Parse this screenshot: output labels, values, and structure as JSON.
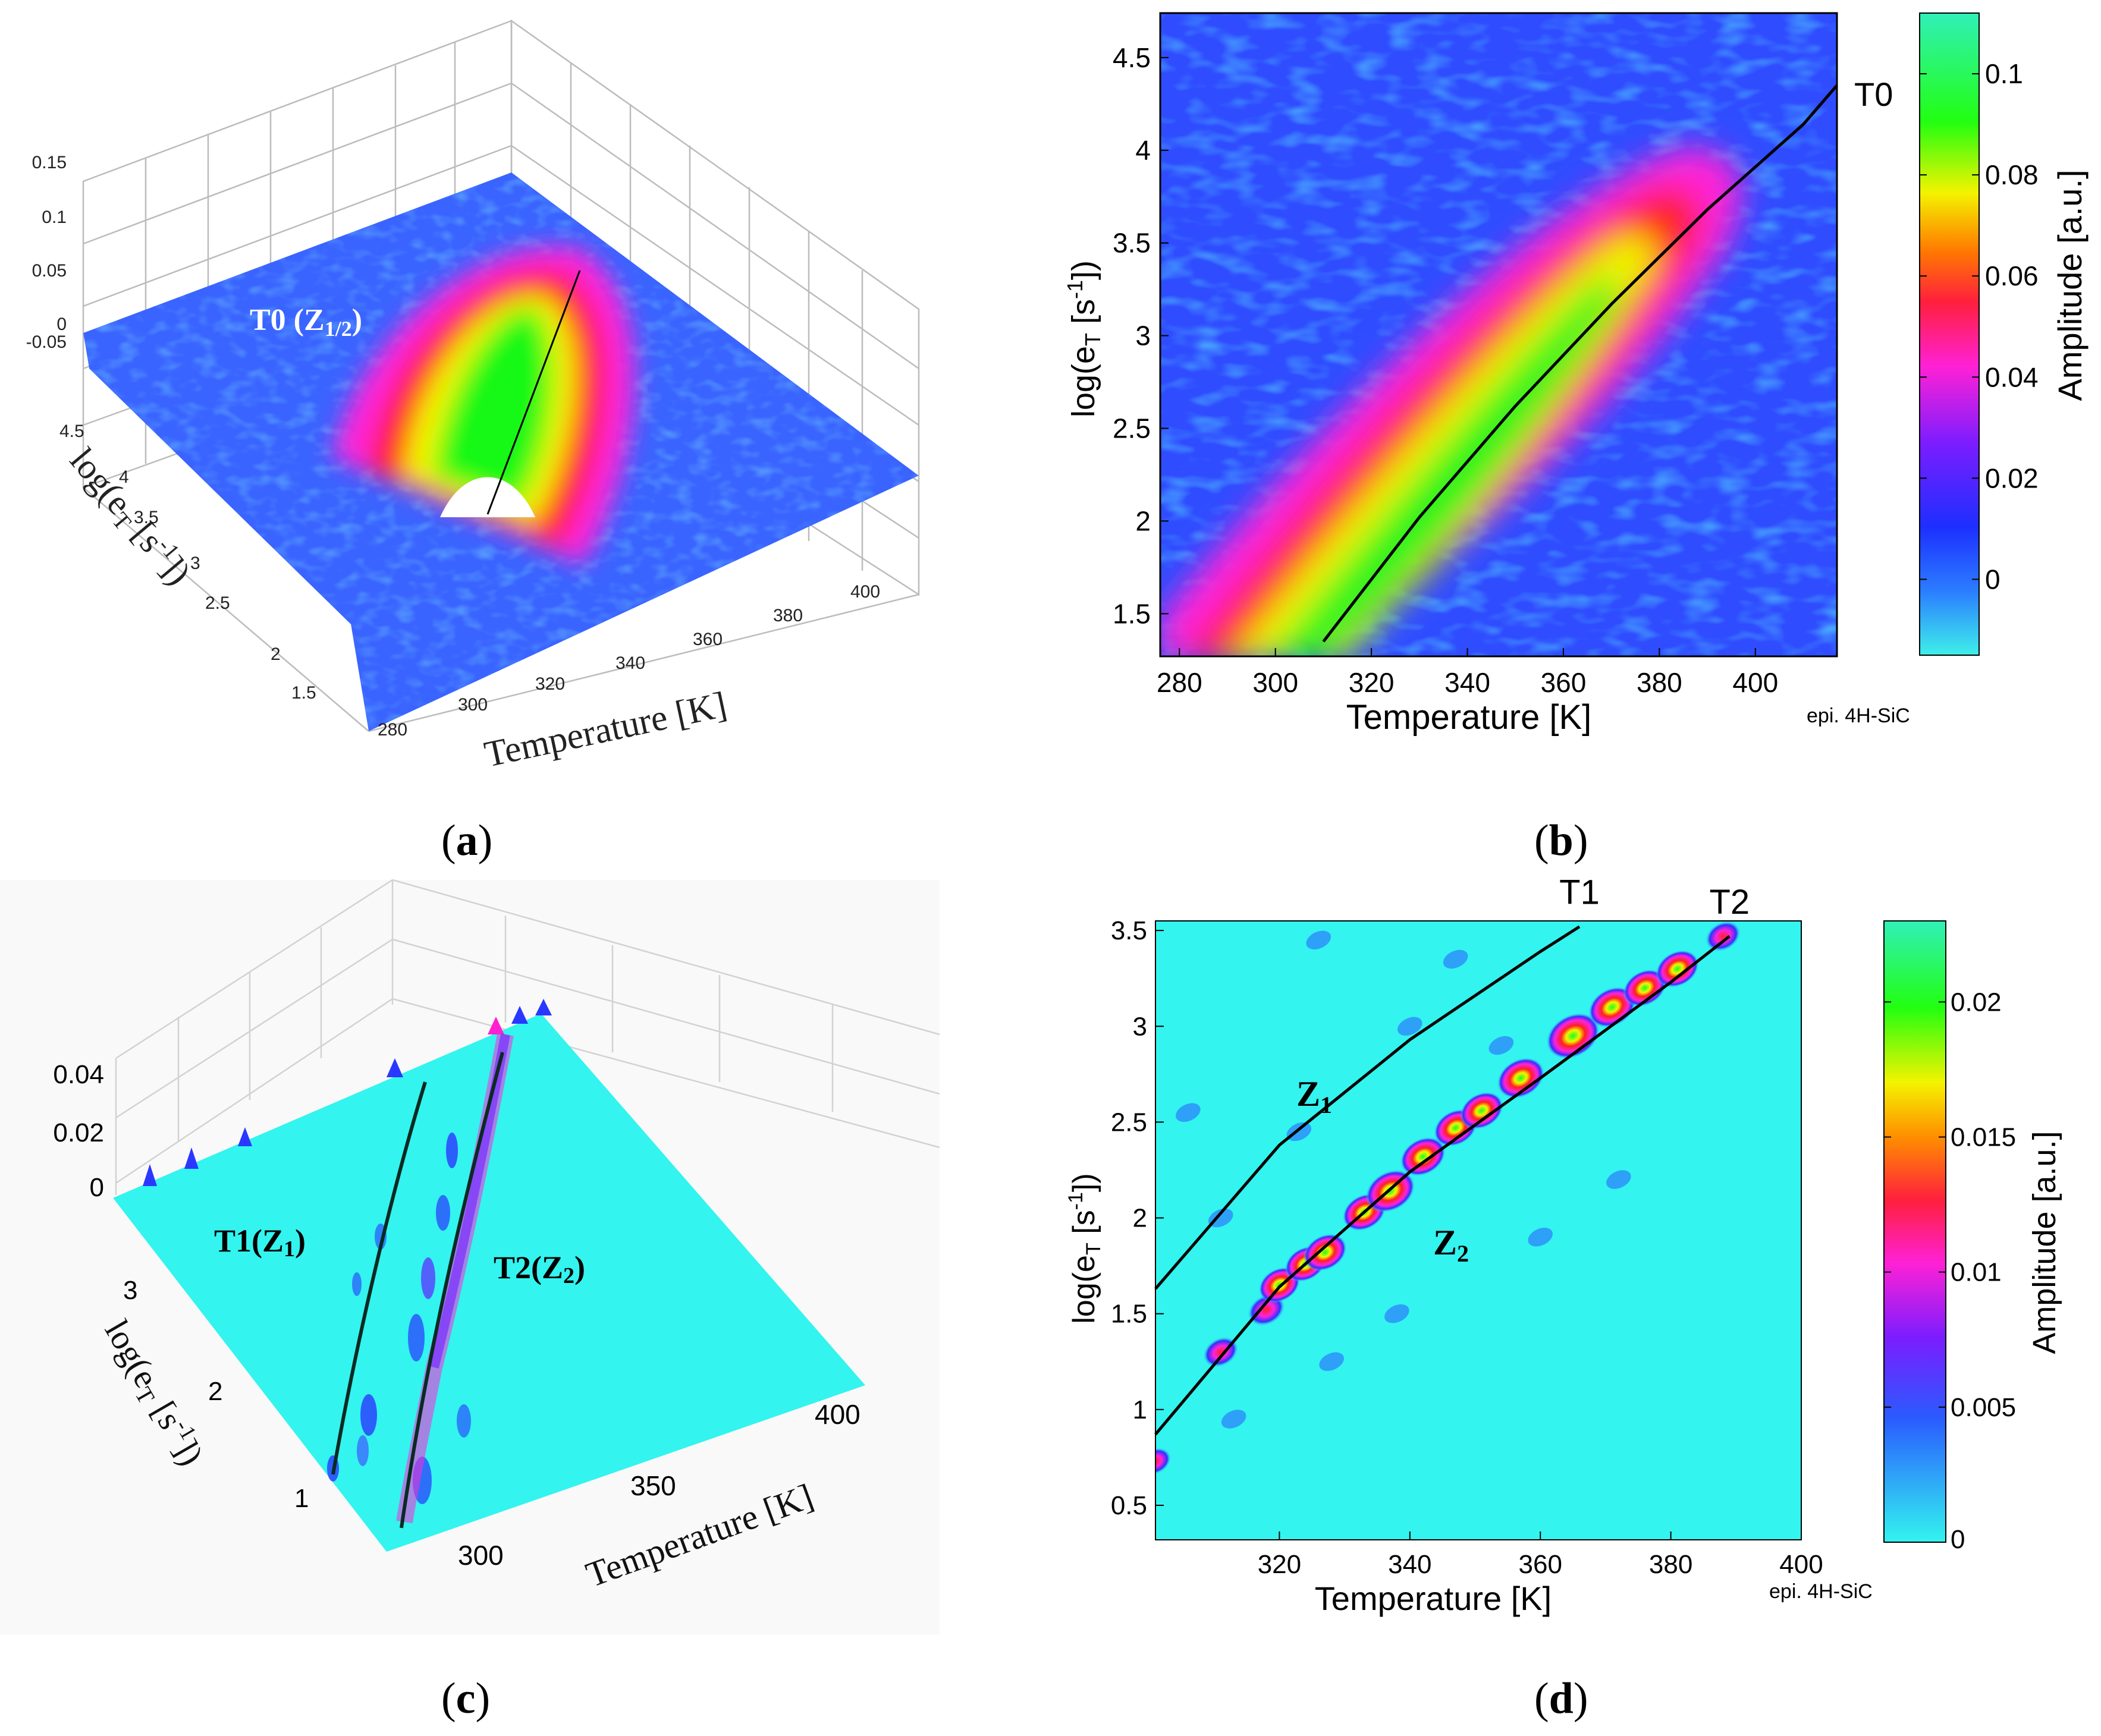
{
  "panel_labels": {
    "a": "a",
    "b": "b",
    "c": "c",
    "d": "d"
  },
  "colors": {
    "jet_low": "#38e8e0",
    "blue": "#2f58ff",
    "magenta": "#ff2dd6",
    "red": "#ff2a14",
    "yellow": "#f5f300",
    "green": "#10e81a",
    "cyan_plane": "#33f4ef",
    "black": "#000000"
  },
  "chart_data": [
    {
      "panel": "a",
      "type": "surface3d",
      "title": "",
      "xlabel": "Temperature [K]",
      "ylabel": "log(e",
      "ylabel_sub": "T",
      "ylabel_unit": " [s",
      "ylabel_sup": "-1",
      "ylabel_end": "])",
      "x_ticks": [
        "280",
        "300",
        "320",
        "340",
        "360",
        "380",
        "400"
      ],
      "y_ticks": [
        "1.5",
        "2",
        "2.5",
        "3",
        "3.5",
        "4",
        "4.5"
      ],
      "z_ticks": [
        "-0.05",
        "0",
        "0.05",
        "0.1",
        "0.15"
      ],
      "xlim": [
        280,
        410
      ],
      "ylim": [
        1.3,
        4.7
      ],
      "zlim": [
        -0.05,
        0.15
      ],
      "annotation": {
        "main": "T0 (Z",
        "sub": "1/2",
        "end": ")"
      },
      "ridge_trace": {
        "x": [
          310,
          420
        ],
        "y": [
          1.4,
          4.4
        ]
      },
      "peak_amplitude": 0.11
    },
    {
      "panel": "b",
      "type": "heatmap",
      "xlabel": "Temperature  [K]",
      "ylabel": "log(e",
      "ylabel_sub": "T",
      "ylabel_unit": " [s",
      "ylabel_sup": "-1",
      "ylabel_end": "])",
      "x_ticks": [
        "280",
        "300",
        "320",
        "340",
        "360",
        "380",
        "400"
      ],
      "y_ticks": [
        "1.5",
        "2",
        "2.5",
        "3",
        "3.5",
        "4",
        "4.5"
      ],
      "xlim": [
        276,
        417
      ],
      "ylim": [
        1.27,
        4.74
      ],
      "colorbar": {
        "label": "Amplitude [a.u.]",
        "ticks": [
          "0",
          "0.02",
          "0.04",
          "0.06",
          "0.08",
          "0.1"
        ],
        "range": [
          -0.015,
          0.112
        ]
      },
      "note": "epi. 4H-SiC",
      "trace_label": "T0",
      "trace": {
        "name": "T0",
        "x": [
          310,
          330,
          350,
          370,
          390,
          410,
          417
        ],
        "y": [
          1.35,
          2.02,
          2.62,
          3.17,
          3.68,
          4.14,
          4.35
        ]
      },
      "peak_amplitude": 0.11
    },
    {
      "panel": "c",
      "type": "surface3d",
      "xlabel": "Temperature [K]",
      "ylabel": "log(e",
      "ylabel_sub": "T",
      "ylabel_unit": " [s",
      "ylabel_sup": "-1",
      "ylabel_end": "])",
      "x_ticks": [
        "300",
        "350",
        "400"
      ],
      "y_ticks": [
        "1",
        "2",
        "3"
      ],
      "z_ticks": [
        "0",
        "0.02",
        "0.04"
      ],
      "zlim": [
        0,
        0.04
      ],
      "annotations": [
        {
          "main": "T1(Z",
          "sub": "1",
          "end": ")"
        },
        {
          "main": "T2(Z",
          "sub": "2",
          "end": ")"
        }
      ]
    },
    {
      "panel": "d",
      "type": "heatmap",
      "xlabel": "Temperature  [K]",
      "ylabel": "log(e",
      "ylabel_sub": "T",
      "ylabel_unit": " [s",
      "ylabel_sup": "-1",
      "ylabel_end": "])",
      "x_ticks": [
        "320",
        "340",
        "360",
        "380",
        "400"
      ],
      "y_ticks": [
        "0.5",
        "1",
        "1.5",
        "2",
        "2.5",
        "3",
        "3.5"
      ],
      "xlim": [
        301,
        400
      ],
      "ylim": [
        0.32,
        3.55
      ],
      "colorbar": {
        "label": "Amplitude [a.u.]",
        "ticks": [
          "0",
          "0.005",
          "0.01",
          "0.015",
          "0.02"
        ],
        "range": [
          0,
          0.023
        ]
      },
      "note": "epi. 4H-SiC",
      "traces": [
        {
          "name": "T1",
          "label": "Z",
          "label_sub": "1",
          "x": [
            301,
            320,
            340,
            360,
            366
          ],
          "y": [
            1.63,
            2.38,
            2.93,
            3.39,
            3.52
          ]
        },
        {
          "name": "T2",
          "label": "Z",
          "label_sub": "2",
          "x": [
            301,
            320,
            340,
            360,
            380,
            389
          ],
          "y": [
            0.87,
            1.64,
            2.24,
            2.73,
            3.23,
            3.47
          ]
        }
      ],
      "peaks": [
        {
          "x": 301,
          "y": 0.73,
          "a": 0.01
        },
        {
          "x": 311,
          "y": 1.3,
          "a": 0.012
        },
        {
          "x": 318,
          "y": 1.52,
          "a": 0.013
        },
        {
          "x": 320,
          "y": 1.65,
          "a": 0.015
        },
        {
          "x": 324,
          "y": 1.76,
          "a": 0.015
        },
        {
          "x": 327,
          "y": 1.82,
          "a": 0.016
        },
        {
          "x": 333,
          "y": 2.03,
          "a": 0.016
        },
        {
          "x": 337,
          "y": 2.14,
          "a": 0.019
        },
        {
          "x": 342,
          "y": 2.32,
          "a": 0.017
        },
        {
          "x": 347,
          "y": 2.47,
          "a": 0.016
        },
        {
          "x": 351,
          "y": 2.56,
          "a": 0.016
        },
        {
          "x": 357,
          "y": 2.73,
          "a": 0.018
        },
        {
          "x": 365,
          "y": 2.95,
          "a": 0.021
        },
        {
          "x": 371,
          "y": 3.1,
          "a": 0.018
        },
        {
          "x": 376,
          "y": 3.2,
          "a": 0.016
        },
        {
          "x": 381,
          "y": 3.3,
          "a": 0.016
        },
        {
          "x": 388,
          "y": 3.47,
          "a": 0.012
        }
      ]
    }
  ]
}
